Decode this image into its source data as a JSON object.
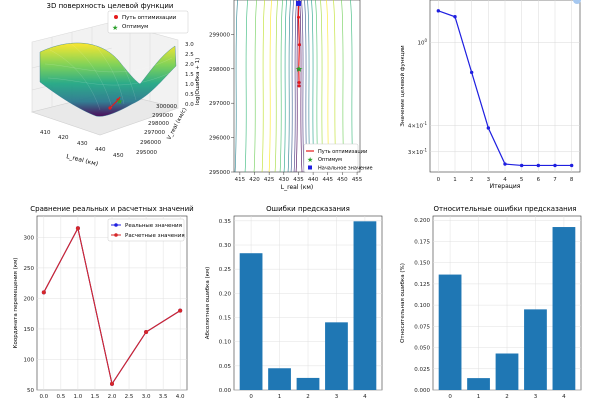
{
  "chart_data": [
    {
      "type": "surface3d",
      "title": "3D поверхность целевой функции",
      "xlabel": "L_real (км)",
      "ylabel": "V_real (км/с)",
      "zlabel": "log(Ошибка + 1)",
      "x_ticks": [
        "410",
        "420",
        "430",
        "440",
        "450"
      ],
      "y_ticks": [
        "295000",
        "296000",
        "297000",
        "298000",
        "299000",
        "300000"
      ],
      "z_ticks": [
        "0.0",
        "0.5",
        "1.0",
        "1.5",
        "2.0",
        "2.5",
        "3.0"
      ],
      "legend": [
        "Путь оптимизации",
        "Оптимум"
      ],
      "colors": {
        "path": "#e41a1c",
        "optimum": "#2ca02c"
      }
    },
    {
      "type": "contour",
      "xlabel": "L_real (км)",
      "ylabel": "",
      "x_ticks": [
        "415",
        "420",
        "425",
        "430",
        "435",
        "440",
        "445",
        "450",
        "455"
      ],
      "y_ticks": [
        "295000",
        "296000",
        "297000",
        "298000",
        "299000"
      ],
      "xlim": [
        413,
        456
      ],
      "ylim": [
        295000,
        300000
      ],
      "path": {
        "x": [
          435,
          435,
          435.3,
          435.1,
          435.2,
          435.2
        ],
        "y": [
          299900,
          299500,
          298700,
          298000,
          297600,
          297500
        ]
      },
      "optimum": {
        "x": 435.2,
        "y": 298000
      },
      "start": {
        "x": 435,
        "y": 299900
      },
      "legend": [
        "Путь оптимизации",
        "Оптимум",
        "Начальное значение"
      ]
    },
    {
      "type": "line",
      "xlabel": "Итерация",
      "ylabel": "Значение целевой функции",
      "y_scale": "log",
      "x": [
        0,
        1,
        2,
        3,
        4,
        5,
        6,
        7,
        8
      ],
      "y": [
        1.42,
        1.33,
        0.72,
        0.39,
        0.262,
        0.258,
        0.258,
        0.258,
        0.258
      ],
      "x_ticks": [
        "0",
        "1",
        "2",
        "3",
        "4",
        "5",
        "6",
        "7",
        "8"
      ],
      "y_ticks": [
        "10^0",
        "4×10^-1",
        "3×10^-1"
      ],
      "y_tick_values": [
        1.0,
        0.4,
        0.3
      ]
    },
    {
      "type": "line",
      "title": "Сравнение реальных и расчетных значений",
      "ylabel": "Координата перемещения (км)",
      "x": [
        0,
        1,
        2,
        3,
        4
      ],
      "series": [
        {
          "name": "Реальные значения",
          "values": [
            210,
            315,
            60,
            145,
            180
          ],
          "color": "#1f1fe0"
        },
        {
          "name": "Расчетные значения",
          "values": [
            210,
            315,
            60,
            145,
            180
          ],
          "color": "#d62728"
        }
      ],
      "x_ticks": [
        "0.0",
        "0.5",
        "1.0",
        "1.5",
        "2.0",
        "2.5",
        "3.0",
        "3.5",
        "4.0"
      ],
      "y_ticks": [
        "50",
        "100",
        "150",
        "200",
        "250",
        "300"
      ],
      "ylim": [
        50,
        335
      ]
    },
    {
      "type": "bar",
      "title": "Ошибки предсказания",
      "ylabel": "Абсолютная ошибка (км)",
      "categories": [
        "0",
        "1",
        "2",
        "3",
        "4"
      ],
      "values": [
        0.283,
        0.045,
        0.025,
        0.14,
        0.349
      ],
      "y_ticks": [
        "0.00",
        "0.05",
        "0.10",
        "0.15",
        "0.20",
        "0.25",
        "0.30",
        "0.35"
      ],
      "ylim": [
        0,
        0.36
      ]
    },
    {
      "type": "bar",
      "title": "Относительные ошибки предсказания",
      "ylabel": "Относительная ошибка (%)",
      "categories": [
        "0",
        "1",
        "2",
        "3",
        "4"
      ],
      "values": [
        0.136,
        0.014,
        0.043,
        0.095,
        0.192
      ],
      "y_ticks": [
        "0.000",
        "0.025",
        "0.050",
        "0.075",
        "0.100",
        "0.125",
        "0.150",
        "0.175",
        "0.200"
      ],
      "ylim": [
        0,
        0.205
      ]
    }
  ]
}
